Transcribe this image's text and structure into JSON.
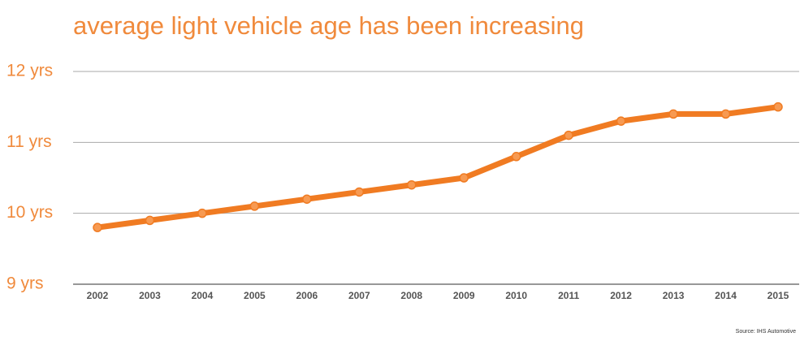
{
  "chart_data": {
    "type": "line",
    "title": "average light vehicle age has been increasing",
    "source": "Source: IHS Automotive",
    "categories": [
      "2002",
      "2003",
      "2004",
      "2005",
      "2006",
      "2007",
      "2008",
      "2009",
      "2010",
      "2011",
      "2012",
      "2013",
      "2014",
      "2015"
    ],
    "values": [
      9.8,
      9.9,
      10.0,
      10.1,
      10.2,
      10.3,
      10.4,
      10.5,
      10.8,
      11.1,
      11.3,
      11.4,
      11.4,
      11.5
    ],
    "color": "#f07b22",
    "ylim": [
      9,
      12
    ],
    "yticks": [
      {
        "value": 9,
        "label": "9 yrs"
      },
      {
        "value": 10,
        "label": "10 yrs"
      },
      {
        "value": 11,
        "label": "11 yrs"
      },
      {
        "value": 12,
        "label": "12 yrs"
      }
    ],
    "grid": true
  }
}
